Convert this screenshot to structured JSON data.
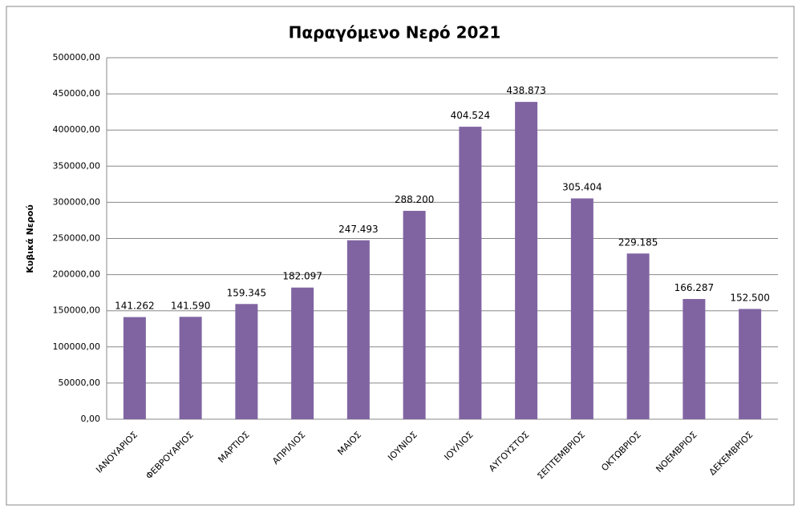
{
  "chart_data": {
    "type": "bar",
    "title": "Παραγόμενο Νερό 2021",
    "y_label": "Κυβικά Νερού",
    "categories": [
      "ΙΑΝΟΥΑΡΙΟΣ",
      "ΦΕΒΡΟΥΑΡΙΟΣ",
      "ΜΑΡΤΙΟΣ",
      "ΑΠΡΙΛΙΟΣ",
      "ΜΑΙΟΣ",
      "ΙΟΥΝΙΟΣ",
      "ΙΟΥΛΙΟΣ",
      "ΑΥΓΟΥΣΤΟΣ",
      "ΣΕΠΤΕΜΒΡΙΟΣ",
      "ΟΚΤΩΒΡΙΟΣ",
      "ΝΟΕΜΒΡΙΟΣ",
      "ΔΕΚΕΜΒΡΙΟΣ"
    ],
    "values": [
      141262,
      141590,
      159345,
      182097,
      247493,
      288200,
      404524,
      438873,
      305404,
      229185,
      166287,
      152500
    ],
    "value_labels": [
      "141.262",
      "141.590",
      "159.345",
      "182.097",
      "247.493",
      "288.200",
      "404.524",
      "438.873",
      "305.404",
      "229.185",
      "166.287",
      "152.500"
    ],
    "color": "#8064a2",
    "ylim": [
      0,
      500000
    ],
    "yticks": [
      {
        "value": 0,
        "label": "0,00"
      },
      {
        "value": 50000,
        "label": "50000,00"
      },
      {
        "value": 100000,
        "label": "100000,00"
      },
      {
        "value": 150000,
        "label": "150000,00"
      },
      {
        "value": 200000,
        "label": "200000,00"
      },
      {
        "value": 250000,
        "label": "250000,00"
      },
      {
        "value": 300000,
        "label": "300000,00"
      },
      {
        "value": 350000,
        "label": "350000,00"
      },
      {
        "value": 400000,
        "label": "400000,00"
      },
      {
        "value": 450000,
        "label": "450000,00"
      },
      {
        "value": 500000,
        "label": "500000,00"
      }
    ],
    "grid": true
  }
}
